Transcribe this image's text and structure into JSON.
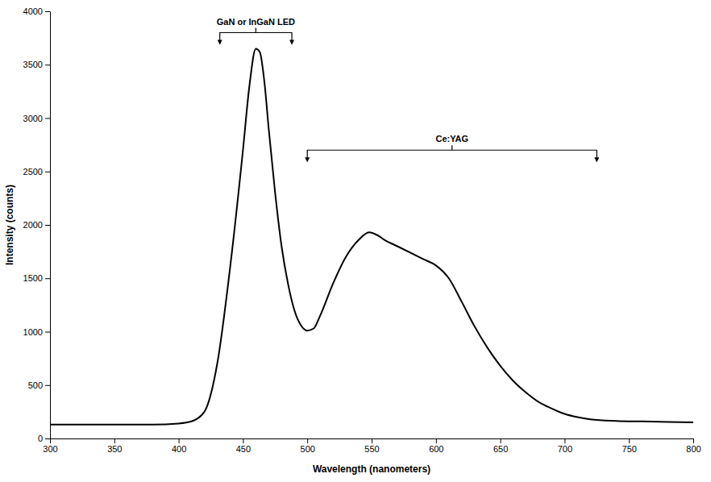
{
  "chart_data": {
    "type": "line",
    "color": "#000000",
    "x_label": "Wavelength (nanometers)",
    "y_label": "Intensity (counts)",
    "xlim": [
      300,
      800
    ],
    "ylim": [
      0,
      4000
    ],
    "xticks": [
      300,
      350,
      400,
      450,
      500,
      550,
      600,
      650,
      700,
      750,
      800
    ],
    "yticks": [
      0,
      500,
      1000,
      1500,
      2000,
      2500,
      3000,
      3500,
      4000
    ],
    "grid": false,
    "x": [
      300,
      320,
      340,
      360,
      380,
      400,
      410,
      420,
      430,
      440,
      450,
      455,
      460,
      463,
      467,
      470,
      475,
      480,
      485,
      490,
      495,
      500,
      505,
      510,
      520,
      530,
      540,
      548,
      555,
      560,
      570,
      580,
      590,
      600,
      610,
      620,
      630,
      640,
      650,
      660,
      670,
      680,
      690,
      700,
      710,
      720,
      740,
      760,
      780,
      800
    ],
    "values": [
      130,
      130,
      130,
      130,
      130,
      140,
      160,
      250,
      700,
      1600,
      2700,
      3300,
      3650,
      3620,
      3300,
      2900,
      2300,
      1800,
      1450,
      1200,
      1060,
      1010,
      1030,
      1150,
      1450,
      1700,
      1860,
      1930,
      1900,
      1860,
      1800,
      1740,
      1680,
      1620,
      1500,
      1280,
      1050,
      850,
      680,
      540,
      430,
      340,
      280,
      230,
      200,
      180,
      165,
      160,
      155,
      150
    ],
    "annotations": [
      {
        "text": "GaN or InGaN LED",
        "x": [
          432,
          488
        ],
        "y": 3800
      },
      {
        "text": "Ce:YAG",
        "x": [
          500,
          725
        ],
        "y": 2700
      }
    ]
  }
}
